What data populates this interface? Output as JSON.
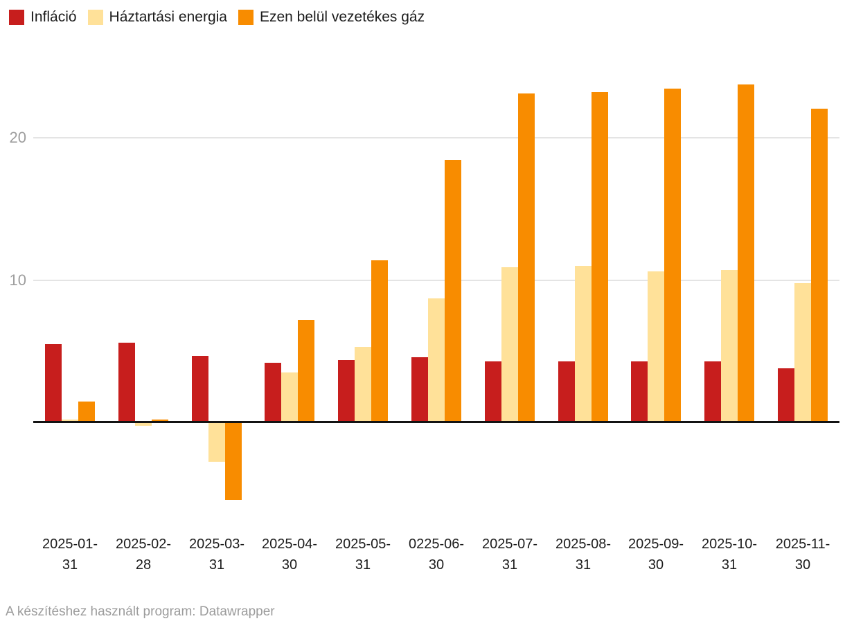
{
  "footer": {
    "text": "A készítéshez használt program: Datawrapper"
  },
  "chart_data": {
    "type": "bar",
    "title": "",
    "xlabel": "",
    "ylabel": "",
    "categories": [
      "2025-01-31",
      "2025-02-28",
      "2025-03-31",
      "2025-04-30",
      "2025-05-31",
      "0225-06-30",
      "2025-07-31",
      "2025-08-31",
      "2025-09-30",
      "2025-10-31",
      "2025-11-30"
    ],
    "series": [
      {
        "name": "Infláció",
        "color": "#c71e1d",
        "values": [
          5.5,
          5.6,
          4.7,
          4.2,
          4.4,
          4.6,
          4.3,
          4.3,
          4.3,
          4.3,
          3.8
        ]
      },
      {
        "name": "Háztartási energia",
        "color": "#ffe199",
        "values": [
          0.2,
          -0.2,
          -2.7,
          3.5,
          5.3,
          8.7,
          10.9,
          11.0,
          10.6,
          10.7,
          9.8
        ]
      },
      {
        "name": "Ezen belül vezetékes gáz",
        "color": "#f88c00",
        "values": [
          1.5,
          0.2,
          -5.4,
          7.2,
          11.4,
          18.4,
          23.1,
          23.2,
          23.4,
          23.7,
          22.0
        ]
      }
    ],
    "yticks": [
      10,
      20
    ],
    "ylim": [
      -6.5,
      25.5
    ],
    "grid": "horizontal-light",
    "zero_axis": "black",
    "legend_position": "top-left",
    "colors": {
      "background": "#ffffff",
      "gridline": "#e4e4e4",
      "axis_line": "#131313",
      "ytick_text": "#9e9e9e",
      "xtick_text": "#1c1c1c",
      "footer_text": "#9c9c9c"
    }
  }
}
